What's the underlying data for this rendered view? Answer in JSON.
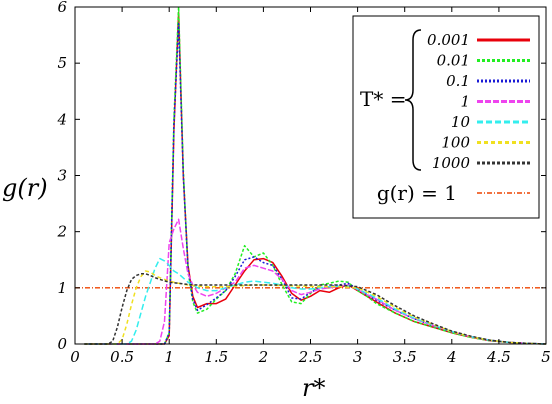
{
  "chart_data": {
    "type": "line",
    "xlabel": "r*",
    "ylabel": "g(r)",
    "xlim": [
      0,
      5
    ],
    "ylim": [
      0,
      6
    ],
    "xticks": [
      "0",
      "0.5",
      "1",
      "1.5",
      "2",
      "2.5",
      "3",
      "3.5",
      "4",
      "4.5",
      "5"
    ],
    "yticks": [
      "0",
      "1",
      "2",
      "3",
      "4",
      "5",
      "6"
    ],
    "legend_position": "top-right",
    "legend_group_label": "T* =",
    "grid": false,
    "series": [
      {
        "name": "0.001",
        "color": "#e8000b",
        "dash": "solid",
        "x": [
          0.1,
          0.2,
          0.3,
          0.4,
          0.5,
          0.6,
          0.7,
          0.8,
          0.9,
          0.95,
          1.0,
          1.05,
          1.1,
          1.15,
          1.2,
          1.25,
          1.3,
          1.4,
          1.5,
          1.6,
          1.7,
          1.8,
          1.9,
          2.0,
          2.1,
          2.2,
          2.3,
          2.4,
          2.5,
          2.6,
          2.7,
          2.8,
          2.9,
          3.0,
          3.1,
          3.2,
          3.4,
          3.6,
          3.8,
          4.0,
          4.2,
          4.4,
          4.6,
          4.8,
          5.0
        ],
        "values": [
          0,
          0,
          0,
          0,
          0,
          0,
          0,
          0,
          0,
          0,
          0.15,
          3.8,
          5.9,
          3.0,
          1.4,
          0.85,
          0.65,
          0.72,
          0.72,
          0.8,
          1.05,
          1.3,
          1.5,
          1.52,
          1.45,
          1.2,
          0.9,
          0.78,
          0.85,
          0.95,
          0.92,
          1.0,
          1.05,
          0.95,
          0.85,
          0.75,
          0.55,
          0.4,
          0.3,
          0.2,
          0.12,
          0.06,
          0.03,
          0.01,
          0
        ]
      },
      {
        "name": "0.01",
        "color": "#22ee22",
        "dash": "3,2",
        "x": [
          0.1,
          0.2,
          0.3,
          0.4,
          0.5,
          0.6,
          0.7,
          0.8,
          0.9,
          0.95,
          1.0,
          1.05,
          1.1,
          1.15,
          1.2,
          1.25,
          1.3,
          1.4,
          1.5,
          1.6,
          1.7,
          1.8,
          1.9,
          2.0,
          2.1,
          2.2,
          2.3,
          2.4,
          2.5,
          2.6,
          2.7,
          2.8,
          2.9,
          3.0,
          3.1,
          3.2,
          3.4,
          3.6,
          3.8,
          4.0,
          4.2,
          4.4,
          4.6,
          4.8,
          5.0
        ],
        "values": [
          0,
          0,
          0,
          0,
          0,
          0,
          0,
          0,
          0,
          0,
          0.2,
          4.0,
          6.0,
          3.1,
          1.3,
          0.75,
          0.55,
          0.62,
          0.8,
          0.95,
          1.25,
          1.75,
          1.55,
          1.62,
          1.4,
          1.05,
          0.75,
          0.72,
          0.9,
          1.05,
          1.08,
          1.12,
          1.1,
          0.95,
          0.85,
          0.72,
          0.55,
          0.4,
          0.3,
          0.2,
          0.12,
          0.06,
          0.03,
          0.01,
          0
        ]
      },
      {
        "name": "0.1",
        "color": "#1a1ad6",
        "dash": "2,2",
        "x": [
          0.1,
          0.2,
          0.3,
          0.4,
          0.5,
          0.6,
          0.7,
          0.8,
          0.9,
          0.95,
          1.0,
          1.05,
          1.1,
          1.15,
          1.2,
          1.25,
          1.3,
          1.4,
          1.5,
          1.6,
          1.7,
          1.8,
          1.9,
          2.0,
          2.1,
          2.2,
          2.3,
          2.4,
          2.5,
          2.6,
          2.7,
          2.8,
          2.9,
          3.0,
          3.1,
          3.2,
          3.4,
          3.6,
          3.8,
          4.0,
          4.2,
          4.4,
          4.6,
          4.8,
          5.0
        ],
        "values": [
          0,
          0,
          0,
          0,
          0,
          0,
          0,
          0,
          0,
          0,
          0.2,
          3.9,
          5.7,
          3.0,
          1.35,
          0.8,
          0.6,
          0.7,
          0.82,
          0.95,
          1.2,
          1.5,
          1.55,
          1.45,
          1.4,
          1.15,
          0.82,
          0.8,
          0.92,
          1.0,
          1.02,
          1.05,
          1.08,
          0.98,
          0.88,
          0.78,
          0.6,
          0.45,
          0.33,
          0.22,
          0.13,
          0.07,
          0.03,
          0.01,
          0
        ]
      },
      {
        "name": "1",
        "color": "#ee44ee",
        "dash": "6,2",
        "x": [
          0.1,
          0.2,
          0.3,
          0.4,
          0.5,
          0.6,
          0.7,
          0.8,
          0.85,
          0.9,
          0.95,
          1.0,
          1.05,
          1.1,
          1.15,
          1.2,
          1.25,
          1.3,
          1.4,
          1.5,
          1.6,
          1.7,
          1.8,
          1.9,
          2.0,
          2.1,
          2.2,
          2.3,
          2.4,
          2.5,
          2.6,
          2.7,
          2.8,
          2.9,
          3.0,
          3.1,
          3.2,
          3.4,
          3.6,
          3.8,
          4.0,
          4.2,
          4.4,
          4.6,
          4.8,
          5.0
        ],
        "values": [
          0,
          0,
          0,
          0,
          0,
          0,
          0,
          0,
          0,
          0.05,
          0.4,
          1.8,
          2.05,
          2.22,
          1.7,
          1.25,
          1.05,
          0.92,
          0.85,
          0.9,
          1.0,
          1.1,
          1.35,
          1.4,
          1.35,
          1.3,
          1.15,
          0.95,
          0.88,
          0.92,
          0.98,
          1.0,
          1.02,
          1.05,
          0.97,
          0.88,
          0.8,
          0.6,
          0.45,
          0.33,
          0.22,
          0.13,
          0.07,
          0.03,
          0.01,
          0
        ]
      },
      {
        "name": "10",
        "color": "#33eeee",
        "dash": "6,3",
        "x": [
          0.1,
          0.2,
          0.3,
          0.4,
          0.5,
          0.55,
          0.6,
          0.65,
          0.7,
          0.75,
          0.8,
          0.85,
          0.9,
          0.95,
          1.0,
          1.05,
          1.1,
          1.2,
          1.3,
          1.4,
          1.5,
          1.6,
          1.7,
          1.8,
          1.9,
          2.0,
          2.1,
          2.2,
          2.3,
          2.4,
          2.5,
          2.6,
          2.7,
          2.8,
          2.9,
          3.0,
          3.1,
          3.2,
          3.4,
          3.6,
          3.8,
          4.0,
          4.2,
          4.4,
          4.6,
          4.8,
          5.0
        ],
        "values": [
          0,
          0,
          0,
          0,
          0,
          0,
          0.05,
          0.25,
          0.55,
          0.85,
          1.1,
          1.35,
          1.52,
          1.48,
          1.4,
          1.3,
          1.25,
          1.1,
          1.0,
          0.95,
          0.95,
          1.0,
          1.05,
          1.1,
          1.12,
          1.1,
          1.08,
          1.05,
          1.0,
          0.98,
          0.98,
          1.0,
          1.02,
          1.03,
          1.03,
          0.98,
          0.9,
          0.82,
          0.62,
          0.46,
          0.34,
          0.22,
          0.13,
          0.07,
          0.03,
          0.01,
          0
        ]
      },
      {
        "name": "100",
        "color": "#f0e020",
        "dash": "4,3",
        "x": [
          0.1,
          0.2,
          0.3,
          0.4,
          0.45,
          0.5,
          0.55,
          0.6,
          0.65,
          0.7,
          0.75,
          0.8,
          0.85,
          0.9,
          1.0,
          1.1,
          1.2,
          1.3,
          1.4,
          1.5,
          1.6,
          1.7,
          1.8,
          1.9,
          2.0,
          2.2,
          2.4,
          2.6,
          2.8,
          3.0,
          3.2,
          3.4,
          3.6,
          3.8,
          4.0,
          4.2,
          4.4,
          4.6,
          4.8,
          5.0
        ],
        "values": [
          0,
          0,
          0,
          0,
          0,
          0.08,
          0.35,
          0.7,
          1.0,
          1.2,
          1.3,
          1.28,
          1.22,
          1.18,
          1.12,
          1.08,
          1.05,
          1.03,
          1.02,
          1.02,
          1.02,
          1.03,
          1.04,
          1.05,
          1.05,
          1.04,
          1.03,
          1.02,
          1.02,
          1.0,
          0.85,
          0.65,
          0.48,
          0.35,
          0.22,
          0.13,
          0.07,
          0.03,
          0.01,
          0
        ]
      },
      {
        "name": "1000",
        "color": "#333333",
        "dash": "3,2",
        "x": [
          0.1,
          0.2,
          0.3,
          0.35,
          0.4,
          0.45,
          0.5,
          0.55,
          0.6,
          0.65,
          0.7,
          0.75,
          0.8,
          0.85,
          0.9,
          1.0,
          1.1,
          1.2,
          1.3,
          1.4,
          1.5,
          1.6,
          1.8,
          2.0,
          2.2,
          2.4,
          2.6,
          2.8,
          3.0,
          3.2,
          3.4,
          3.6,
          3.8,
          4.0,
          4.2,
          4.4,
          4.6,
          4.8,
          5.0
        ],
        "values": [
          0,
          0,
          0,
          0,
          0.05,
          0.3,
          0.65,
          0.95,
          1.15,
          1.22,
          1.25,
          1.25,
          1.22,
          1.18,
          1.15,
          1.1,
          1.08,
          1.06,
          1.05,
          1.05,
          1.05,
          1.05,
          1.05,
          1.05,
          1.05,
          1.05,
          1.05,
          1.05,
          1.02,
          0.88,
          0.68,
          0.5,
          0.36,
          0.23,
          0.14,
          0.07,
          0.03,
          0.01,
          0
        ]
      }
    ],
    "reference_line": {
      "name": "g(r) = 1",
      "y": 1,
      "color": "#ee4400"
    }
  }
}
